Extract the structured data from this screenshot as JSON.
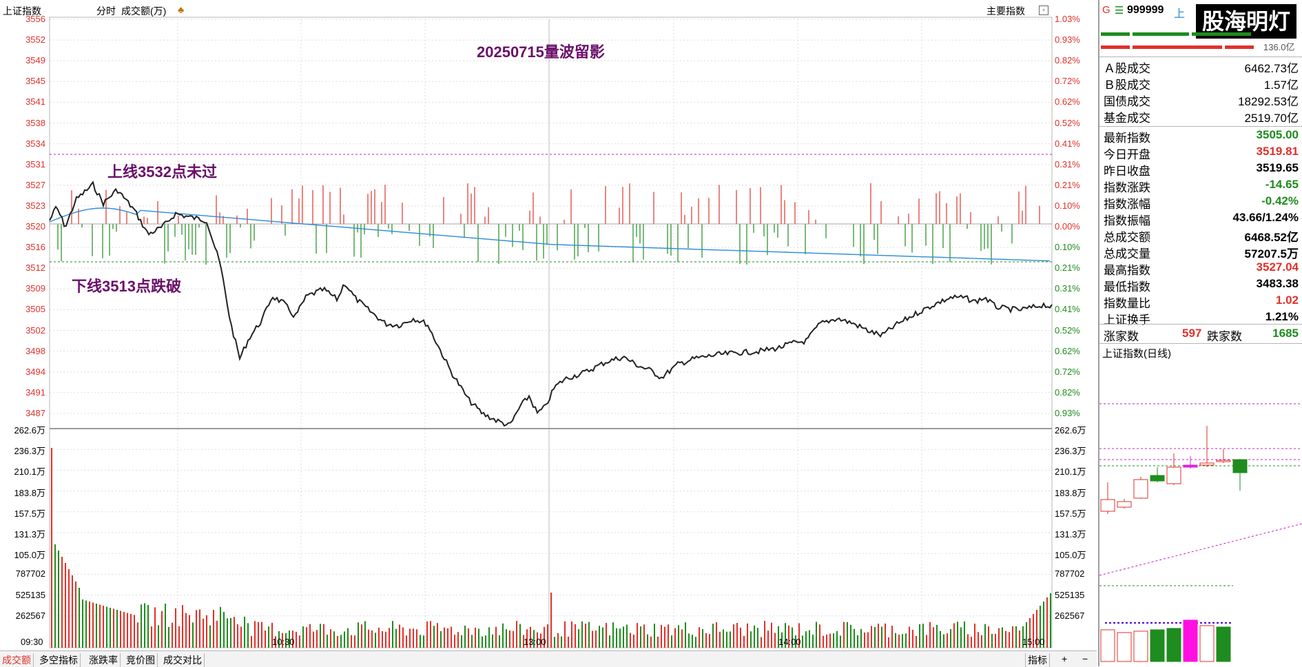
{
  "header": {
    "index_name": "上证指数",
    "mode": "分时",
    "metric": "成交额(万)",
    "main_indicator": "主要指数",
    "annotation_title": "20250715量波留影",
    "annotation_upper": "上线3532点未过",
    "annotation_lower": "下线3513点跌破"
  },
  "price_axis": {
    "left_labels": [
      "3556",
      "3552",
      "3549",
      "3545",
      "3541",
      "3538",
      "3534",
      "3531",
      "3527",
      "3523",
      "3520",
      "3516",
      "3512",
      "3509",
      "3505",
      "3502",
      "3498",
      "3494",
      "3491",
      "3487"
    ],
    "right_labels": [
      "1.03%",
      "0.93%",
      "0.82%",
      "0.72%",
      "0.62%",
      "0.52%",
      "0.41%",
      "0.31%",
      "0.21%",
      "0.10%",
      "0.00%",
      "0.10%",
      "0.21%",
      "0.31%",
      "0.41%",
      "0.52%",
      "0.62%",
      "0.72%",
      "0.82%",
      "0.93%"
    ]
  },
  "volume_axis": {
    "labels": [
      "262.6万",
      "236.3万",
      "210.1万",
      "183.8万",
      "157.5万",
      "131.3万",
      "105.0万",
      "787702",
      "525135",
      "262567"
    ]
  },
  "time_axis": {
    "labels": [
      "09:30",
      "10:30",
      "13:00",
      "14:00",
      "15:00"
    ]
  },
  "tabs": {
    "items": [
      "成交额",
      "多空指标",
      "涨跌率",
      "竞价图",
      "成交对比"
    ],
    "right_label": "指标",
    "plus": "+",
    "minus": "−"
  },
  "panel": {
    "header": {
      "g": "G",
      "menu": "☰",
      "code": "999999",
      "name_short": "上",
      "watermark": "股海明灯",
      "small_value": "136.0亿"
    },
    "turnover": [
      {
        "label": "Ａ股成交",
        "value": "6462.73亿"
      },
      {
        "label": "Ｂ股成交",
        "value": "1.57亿"
      },
      {
        "label": "国债成交",
        "value": "18292.53亿"
      },
      {
        "label": "基金成交",
        "value": "2519.70亿"
      }
    ],
    "quotes": [
      {
        "label": "最新指数",
        "value": "3505.00",
        "color": "grn"
      },
      {
        "label": "今日开盘",
        "value": "3519.81",
        "color": "red"
      },
      {
        "label": "昨日收盘",
        "value": "3519.65",
        "color": ""
      },
      {
        "label": "指数涨跌",
        "value": "-14.65",
        "color": "grn"
      },
      {
        "label": "指数涨幅",
        "value": "-0.42%",
        "color": "grn"
      },
      {
        "label": "指数振幅",
        "value": "43.66/1.24%",
        "color": ""
      },
      {
        "label": "总成交额",
        "value": "6468.52亿",
        "color": ""
      },
      {
        "label": "总成交量",
        "value": "57207.5万",
        "color": ""
      },
      {
        "label": "最高指数",
        "value": "3527.04",
        "color": "red"
      },
      {
        "label": "最低指数",
        "value": "3483.38",
        "color": ""
      },
      {
        "label": "指数量比",
        "value": "1.02",
        "color": "red"
      },
      {
        "label": "上证换手",
        "value": "1.21%",
        "color": ""
      }
    ],
    "breadth": {
      "up_label": "涨家数",
      "up_value": "597",
      "down_label": "跌家数",
      "down_value": "1685"
    },
    "daily_title": "上证指数(日线)"
  },
  "colors": {
    "up": "#e0312a",
    "down": "#1e8c1e",
    "avg": "#2b8bd6",
    "dash": "#c020c0",
    "label_purple": "#6a0f6a"
  }
}
